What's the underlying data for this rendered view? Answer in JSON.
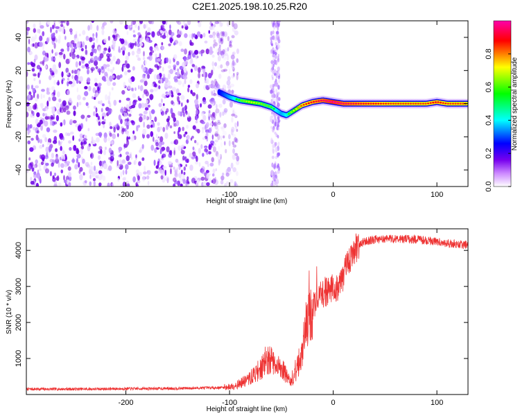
{
  "title": "C2E1.2025.198.10.25.R20",
  "chart_data": [
    {
      "type": "heatmap",
      "xlabel": "Height of straight line (km)",
      "ylabel": "Frequency (Hz)",
      "xlim": [
        -296,
        130
      ],
      "ylim": [
        -50,
        50
      ],
      "xticks": [
        -200,
        -100,
        0,
        100
      ],
      "yticks": [
        -40,
        -20,
        0,
        20,
        40
      ],
      "grid": false,
      "noise_region": {
        "x": [
          -296,
          -100
        ],
        "y": [
          -50,
          50
        ]
      },
      "noise_band": {
        "x": [
          -60,
          -52
        ],
        "y": [
          -50,
          50
        ]
      },
      "signal_track": {
        "x": [
          -110,
          -100,
          -90,
          -80,
          -70,
          -60,
          -55,
          -50,
          -45,
          -40,
          -35,
          -30,
          -20,
          -10,
          0,
          10,
          30,
          60,
          90,
          100,
          110,
          130
        ],
        "y": [
          7,
          4,
          2,
          1,
          0,
          -2,
          -4,
          -6,
          -7,
          -5,
          -3,
          -1,
          1,
          2,
          1,
          0,
          0,
          0,
          0,
          1,
          0,
          0
        ],
        "amplitude": [
          0.35,
          0.45,
          0.55,
          0.65,
          0.6,
          0.55,
          0.5,
          0.45,
          0.5,
          0.6,
          0.7,
          0.8,
          0.85,
          0.9,
          0.95,
          0.9,
          0.85,
          0.8,
          0.8,
          0.85,
          0.8,
          0.8
        ]
      },
      "colorbar": {
        "label": "Normalized spectral amplitude",
        "range": [
          0,
          1
        ],
        "ticks": [
          0.0,
          0.2,
          0.4,
          0.6,
          0.8
        ],
        "tick_labels": [
          "0.0",
          "0.2",
          "0.4",
          "0.6",
          "0.8"
        ],
        "colormap": [
          "#ffffff",
          "#cc88ff",
          "#7700ee",
          "#0000ff",
          "#00ffff",
          "#00ff00",
          "#ffff00",
          "#ff0000",
          "#ff00aa"
        ]
      }
    },
    {
      "type": "line",
      "xlabel": "Height of straight line (km)",
      "ylabel": "SNR (10 * v/v)",
      "xlim": [
        -296,
        130
      ],
      "ylim": [
        0,
        4600
      ],
      "xticks": [
        -200,
        -100,
        0,
        100
      ],
      "yticks": [
        1000,
        2000,
        3000,
        4000
      ],
      "grid": false,
      "color": "#ee3333",
      "series": [
        {
          "x": [
            -296,
            -250,
            -200,
            -150,
            -110,
            -100,
            -90,
            -80,
            -75,
            -70,
            -65,
            -60,
            -55,
            -50,
            -45,
            -40,
            -35,
            -30,
            -25,
            -20,
            -15,
            -10,
            -5,
            0,
            5,
            10,
            15,
            20,
            25,
            30,
            40,
            50,
            60,
            80,
            100,
            110,
            130
          ],
          "y": [
            150,
            150,
            160,
            170,
            190,
            210,
            300,
            450,
            600,
            700,
            900,
            950,
            700,
            800,
            500,
            300,
            700,
            1200,
            2000,
            2400,
            2700,
            2800,
            2900,
            2950,
            3000,
            3300,
            3700,
            4000,
            4150,
            4250,
            4300,
            4320,
            4330,
            4300,
            4250,
            4200,
            4150
          ]
        }
      ]
    }
  ]
}
